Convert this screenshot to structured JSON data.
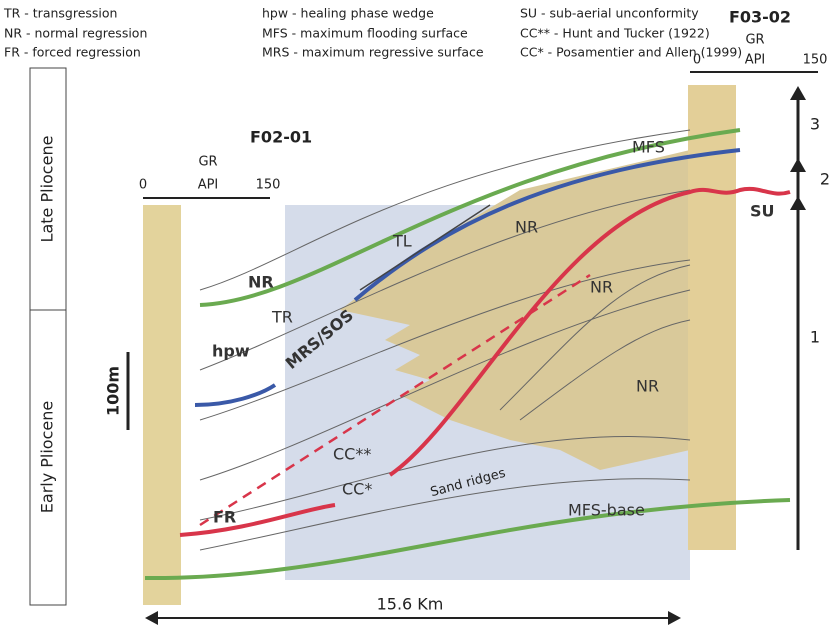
{
  "legend": [
    [
      "TR - transgression",
      "NR - normal regression",
      "FR - forced regression"
    ],
    [
      "hpw - healing phase wedge",
      "MFS - maximum flooding surface",
      "MRS - maximum regressive surface"
    ],
    [
      "SU - sub-aerial unconformity",
      "CC** - Hunt and Tucker (1922)",
      "CC* - Posamentier and Allen (1999)"
    ]
  ],
  "wells": [
    {
      "name": "F02-01",
      "log": "GR",
      "unit": "API",
      "min": 0,
      "max": 150
    },
    {
      "name": "F03-02",
      "log": "GR",
      "unit": "API",
      "min": 0,
      "max": 150
    }
  ],
  "ages": [
    "Late Pliocene",
    "Early Pliocene"
  ],
  "scale": "100m",
  "distance": "15.6 Km",
  "labels": {
    "mfs": "MFS",
    "tl": "TL",
    "nr_top": "NR",
    "su": "SU",
    "nr_left": "NR",
    "tr": "TR",
    "mrs": "MRS/SOS",
    "nr_mid": "NR",
    "nr_low": "NR",
    "hpw": "hpw",
    "cc2": "CC**",
    "cc1": "CC*",
    "sand": "Sand ridges",
    "fr": "FR",
    "mfs_base": "MFS-base"
  },
  "sequences": [
    "3",
    "2",
    "1"
  ]
}
